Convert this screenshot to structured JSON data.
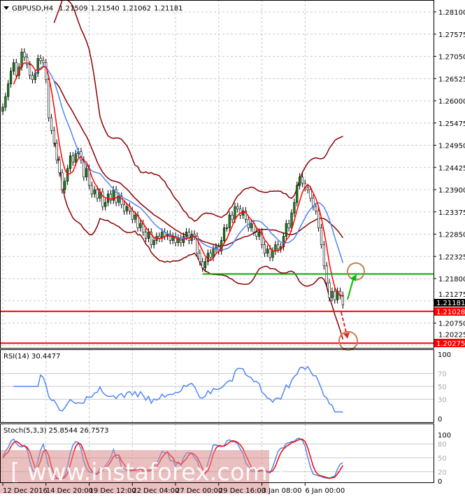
{
  "header": {
    "symbol": "GBPUSD,H4",
    "open": "1.21509",
    "high": "1.21540",
    "low": "1.21062",
    "close": "1.21181"
  },
  "rsi_label": "RSI(14) 30.4477",
  "stoch_label": "Stoch(5,3,3) 25.8544 26.7573",
  "watermark": "[ www.instaforex.com ]",
  "colors": {
    "bull": "#1a8c1a",
    "bear": "#1a8c1a",
    "fast_ma": "#ff0000",
    "slow_ma": "#4f86f7",
    "bands": "#8b0000",
    "support": "#00aa00",
    "level": "#ff0000",
    "circle": "#c08050"
  },
  "chart_data": [
    {
      "type": "candlestick",
      "title": "GBPUSD,H4",
      "ylim": [
        1.2006,
        1.2837
      ],
      "yticks": [
        "1.28100",
        "1.27575",
        "1.27050",
        "1.26525",
        "1.26000",
        "1.25475",
        "1.24950",
        "1.24425",
        "1.23900",
        "1.23375",
        "1.22850",
        "1.22325",
        "1.21800",
        "1.21275",
        "1.20750",
        "1.20225"
      ],
      "xticks": [
        "12 Dec 2016",
        "14 Dec 20:00",
        "19 Dec 12:00",
        "22 Dec 04:00",
        "27 Dec 00:00",
        "29 Dec 16:00",
        "3 Jan 08:00",
        "6 Jan 00:00"
      ],
      "xtick_bars": [
        0,
        16,
        32,
        48,
        64,
        80,
        96,
        112
      ],
      "closes": [
        1.2585,
        1.261,
        1.264,
        1.267,
        1.269,
        1.266,
        1.268,
        1.2715,
        1.2703,
        1.2685,
        1.266,
        1.265,
        1.2665,
        1.27,
        1.2695,
        1.269,
        1.265,
        1.256,
        1.253,
        1.25,
        1.246,
        1.243,
        1.239,
        1.241,
        1.244,
        1.247,
        1.2455,
        1.2475,
        1.248,
        1.246,
        1.242,
        1.244,
        1.24,
        1.238,
        1.239,
        1.237,
        1.2385,
        1.235,
        1.236,
        1.238,
        1.2365,
        1.239,
        1.236,
        1.2375,
        1.2355,
        1.234,
        1.235,
        1.234,
        1.232,
        1.233,
        1.23,
        1.231,
        1.229,
        1.2275,
        1.229,
        1.226,
        1.227,
        1.228,
        1.2275,
        1.229,
        1.228,
        1.2285,
        1.227,
        1.228,
        1.2265,
        1.2275,
        1.2265,
        1.228,
        1.229,
        1.227,
        1.2285,
        1.228,
        1.224,
        1.222,
        1.2205,
        1.222,
        1.224,
        1.223,
        1.225,
        1.2255,
        1.2245,
        1.227,
        1.23,
        1.23,
        1.233,
        1.232,
        1.235,
        1.2345,
        1.233,
        1.234,
        1.232,
        1.23,
        1.231,
        1.229,
        1.228,
        1.229,
        1.226,
        1.224,
        1.225,
        1.223,
        1.2245,
        1.226,
        1.225,
        1.2255,
        1.228,
        1.231,
        1.23,
        1.2335,
        1.236,
        1.24,
        1.242,
        1.2405,
        1.2395,
        1.239,
        1.237,
        1.235,
        1.234,
        1.23,
        1.226,
        1.221,
        1.217,
        1.2135,
        1.215,
        1.213,
        1.215,
        1.214,
        1.2118
      ],
      "current_price": "1.21181",
      "levels": [
        {
          "price": 1.21028,
          "label": "1.21028",
          "color": "#ff0000"
        },
        {
          "price": 1.20275,
          "label": "1.20275",
          "color": "#ff0000"
        }
      ],
      "support_line": {
        "price": 1.2191,
        "from_bar": 74,
        "color": "#00aa00"
      },
      "targets": [
        {
          "price": 1.2197,
          "direction": "up"
        },
        {
          "price": 1.2033,
          "direction": "down"
        }
      ]
    },
    {
      "type": "line",
      "title": "RSI(14) 30.4477",
      "ylim": [
        0,
        100
      ],
      "yticks": [
        "100",
        "70",
        "50",
        "30",
        "0"
      ],
      "levels": [
        70,
        50,
        30
      ]
    },
    {
      "type": "line",
      "title": "Stoch(5,3,3) 25.8544 26.7573",
      "ylim": [
        0,
        100
      ],
      "yticks": [
        "100",
        "80",
        "50",
        "20",
        "0"
      ],
      "levels": [
        80,
        50,
        20
      ]
    }
  ]
}
